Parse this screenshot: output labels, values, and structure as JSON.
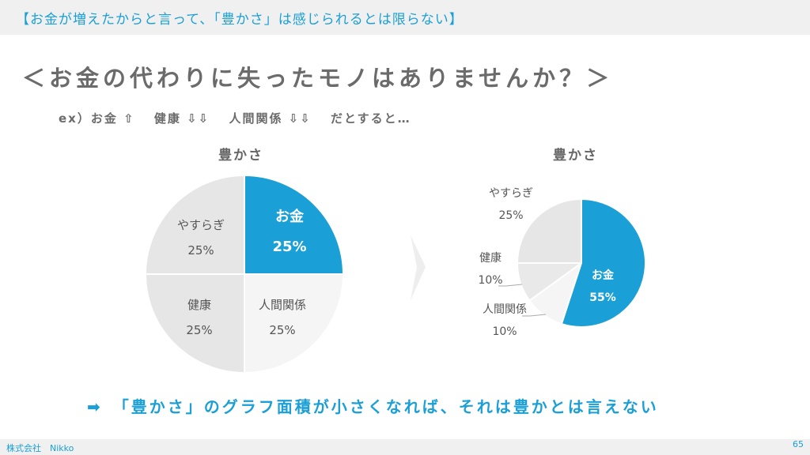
{
  "header": {
    "banner": "【お金が増えたからと言って、「豊かさ」は感じられるとは限らない】"
  },
  "title": "＜お金の代わりに失ったモノはありませんか？＞",
  "subtitle": "ex）お金 ⇧　 健康 ⇩⇩　 人間関係 ⇩⇩　 だとすると…",
  "conclusion": "➡　「豊かさ」のグラフ面積が小さくなれば、それは豊かとは言えない",
  "footer": {
    "company": "株式会社　Nikko",
    "page": "65"
  },
  "colors": {
    "accent": "#1a9fd6",
    "light": "#f5f5f5",
    "gray": "#e6e6e6"
  },
  "chart_data": [
    {
      "type": "pie",
      "title": "豊かさ",
      "categories": [
        "お金",
        "人間関係",
        "健康",
        "やすらぎ"
      ],
      "values": [
        25,
        25,
        25,
        25
      ],
      "labels": [
        "25%",
        "25%",
        "25%",
        "25%"
      ],
      "colors": [
        "#1a9fd6",
        "#f5f5f5",
        "#e6e6e6",
        "#e6e6e6"
      ]
    },
    {
      "type": "pie",
      "title": "豊かさ",
      "categories": [
        "お金",
        "人間関係",
        "健康",
        "やすらぎ"
      ],
      "values": [
        55,
        10,
        10,
        25
      ],
      "labels": [
        "55%",
        "10%",
        "10%",
        "25%"
      ],
      "colors": [
        "#1a9fd6",
        "#f5f5f5",
        "#e9e9e9",
        "#e6e6e6"
      ]
    }
  ]
}
